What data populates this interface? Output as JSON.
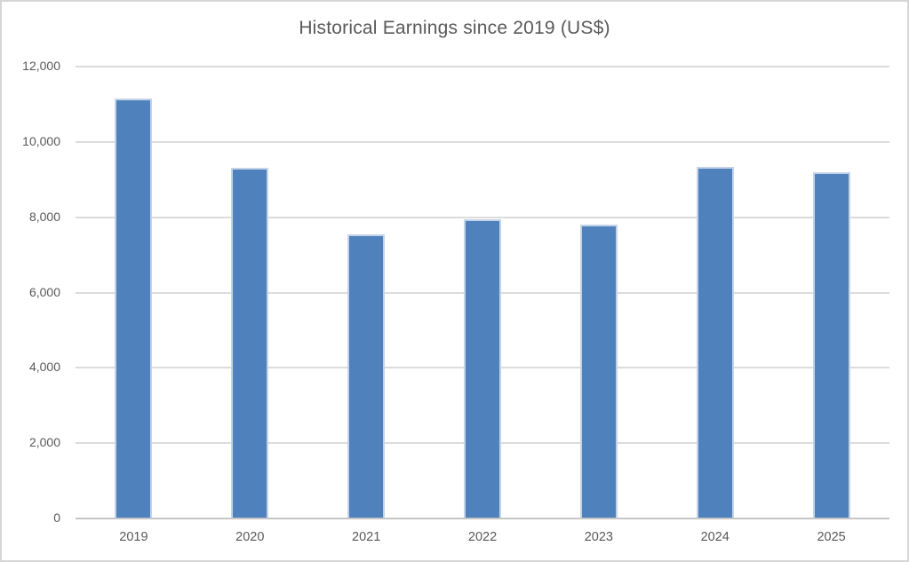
{
  "window": {
    "background_color": "#ffffff",
    "frame_border_color": "#d6d6d6"
  },
  "chart_data": {
    "type": "bar",
    "title": "Historical Earnings since 2019 (US$)",
    "categories": [
      "2019",
      "2020",
      "2021",
      "2022",
      "2023",
      "2024",
      "2025"
    ],
    "values": [
      11130,
      9300,
      7520,
      7920,
      7790,
      9310,
      9160
    ],
    "xlabel": "",
    "ylabel": "",
    "ylim": [
      0,
      12000
    ],
    "ytick_interval": 2000,
    "ytick_labels": [
      "0",
      "2,000",
      "4,000",
      "6,000",
      "8,000",
      "10,000",
      "12,000"
    ],
    "grid": true,
    "legend_position": "none",
    "bar_color": "#4f81bd",
    "bar_edge_color": "#c3d3e7",
    "gridline_color": "#dcdcdc",
    "axis_line_color": "#c6c6c6",
    "text_color": "#595959"
  }
}
